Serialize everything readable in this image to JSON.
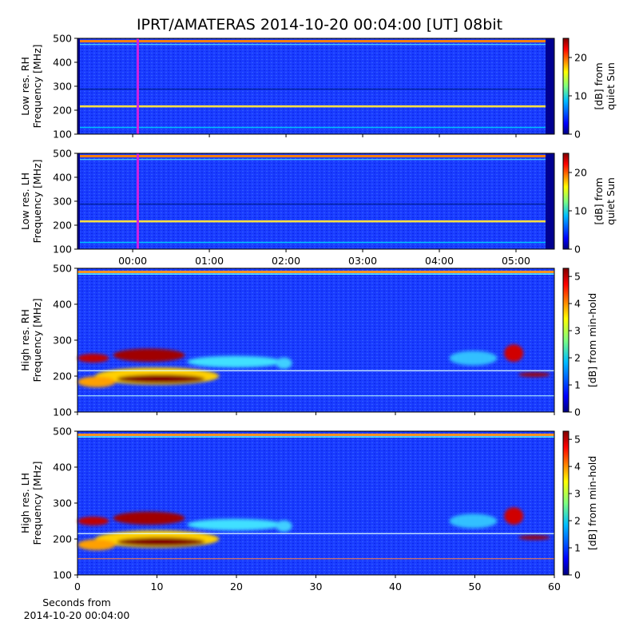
{
  "title": "IPRT/AMATERAS 2014-10-20 00:04:00 [UT]   08bit",
  "chart_data": [
    {
      "type": "spectrogram",
      "ylabel": [
        "Low res. RH",
        "Frequency [MHz]"
      ],
      "xlim": [
        -0.72,
        5.5
      ],
      "xticks": [
        0,
        1,
        2,
        3,
        4,
        5
      ],
      "cursor": 0.067,
      "cursor_color": "#d020e0",
      "ylim": [
        100,
        500
      ],
      "yticks": [
        100,
        200,
        300,
        400,
        500
      ],
      "colorbar": {
        "label": [
          "[dB] from",
          "quiet Sun"
        ],
        "lim": [
          0,
          25
        ],
        "ticks": [
          0,
          10,
          20
        ]
      }
    },
    {
      "type": "spectrogram",
      "ylabel": [
        "Low res. LH",
        "Frequency [MHz]"
      ],
      "xlim": [
        -0.72,
        5.5
      ],
      "xticks": [
        {
          "value": 0,
          "label": "00:00"
        },
        {
          "value": 1,
          "label": "01:00"
        },
        {
          "value": 2,
          "label": "02:00"
        },
        {
          "value": 3,
          "label": "03:00"
        },
        {
          "value": 4,
          "label": "04:00"
        },
        {
          "value": 5,
          "label": "05:00"
        }
      ],
      "cursor": 0.067,
      "cursor_color": "#d020e0",
      "ylim": [
        100,
        500
      ],
      "yticks": [
        100,
        200,
        300,
        400,
        500
      ],
      "colorbar": {
        "label": [
          "[dB] from",
          "quiet Sun"
        ],
        "lim": [
          0,
          25
        ],
        "ticks": [
          0,
          10,
          20
        ]
      }
    },
    {
      "type": "spectrogram",
      "ylabel": [
        "High res. RH",
        "Frequency [MHz]"
      ],
      "xlim": [
        0,
        60
      ],
      "xticks": [
        0,
        10,
        20,
        30,
        40,
        50,
        60
      ],
      "ylim": [
        100,
        500
      ],
      "yticks": [
        100,
        200,
        300,
        400,
        500
      ],
      "colorbar": {
        "label": [
          "[dB] from min-hold"
        ],
        "lim": [
          0,
          5.3
        ],
        "ticks": [
          0,
          1,
          2,
          3,
          4,
          5
        ]
      }
    },
    {
      "type": "spectrogram",
      "ylabel": [
        "High res. LH",
        "Frequency [MHz]"
      ],
      "xlabel": [
        "Seconds from",
        "2014-10-20 00:04:00"
      ],
      "xlim": [
        0,
        60
      ],
      "xticks": [
        0,
        10,
        20,
        30,
        40,
        50,
        60
      ],
      "show_xtick_labels": true,
      "ylim": [
        100,
        500
      ],
      "yticks": [
        100,
        200,
        300,
        400,
        500
      ],
      "colorbar": {
        "label": [
          "[dB] from min-hold"
        ],
        "lim": [
          0,
          5.3
        ],
        "ticks": [
          0,
          1,
          2,
          3,
          4,
          5
        ]
      }
    }
  ]
}
